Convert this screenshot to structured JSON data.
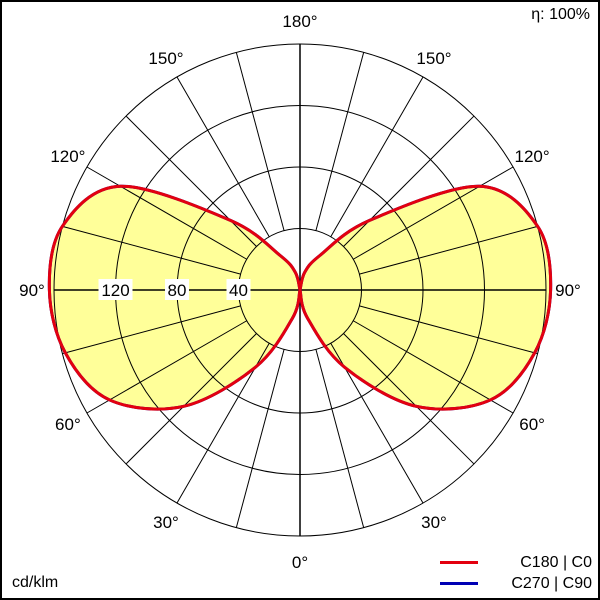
{
  "efficiency_label": "η: 100%",
  "unit_label": "cd/klm",
  "colors": {
    "fill": "#ffff99",
    "c0_line": "#e3000f",
    "c90_line": "#0000b4",
    "grid": "#000000"
  },
  "chart_data": {
    "type": "polar",
    "title": "",
    "radial_unit": "cd/klm",
    "radial_max": 160,
    "radial_rings": [
      40,
      80,
      120,
      160
    ],
    "radial_tick_labels": [
      "40",
      "80",
      "120"
    ],
    "angle_step_deg": 15,
    "angle_labels": [
      {
        "text": "180°",
        "angle": 180,
        "side": "center"
      },
      {
        "text": "150°",
        "angle": 150,
        "side": "left"
      },
      {
        "text": "150°",
        "angle": 150,
        "side": "right"
      },
      {
        "text": "120°",
        "angle": 120,
        "side": "left"
      },
      {
        "text": "120°",
        "angle": 120,
        "side": "right"
      },
      {
        "text": "90°",
        "angle": 90,
        "side": "left"
      },
      {
        "text": "90°",
        "angle": 90,
        "side": "right"
      },
      {
        "text": "60°",
        "angle": 60,
        "side": "left"
      },
      {
        "text": "60°",
        "angle": 60,
        "side": "right"
      },
      {
        "text": "30°",
        "angle": 30,
        "side": "left"
      },
      {
        "text": "30°",
        "angle": 30,
        "side": "right"
      },
      {
        "text": "0°",
        "angle": 0,
        "side": "center"
      }
    ],
    "angles_deg": [
      0,
      15,
      30,
      45,
      60,
      75,
      90,
      105,
      120,
      135,
      150,
      165,
      180
    ],
    "series": [
      {
        "name": "C180 | C0",
        "color": "#e3000f",
        "values": [
          0,
          19,
          58,
          107,
          143,
          158,
          163,
          160,
          135,
          64,
          26,
          12,
          0
        ]
      },
      {
        "name": "C270 | C90",
        "color": "#0000b4",
        "values": [
          0,
          19,
          58,
          107,
          143,
          158,
          163,
          160,
          135,
          64,
          26,
          12,
          0
        ]
      }
    ]
  }
}
